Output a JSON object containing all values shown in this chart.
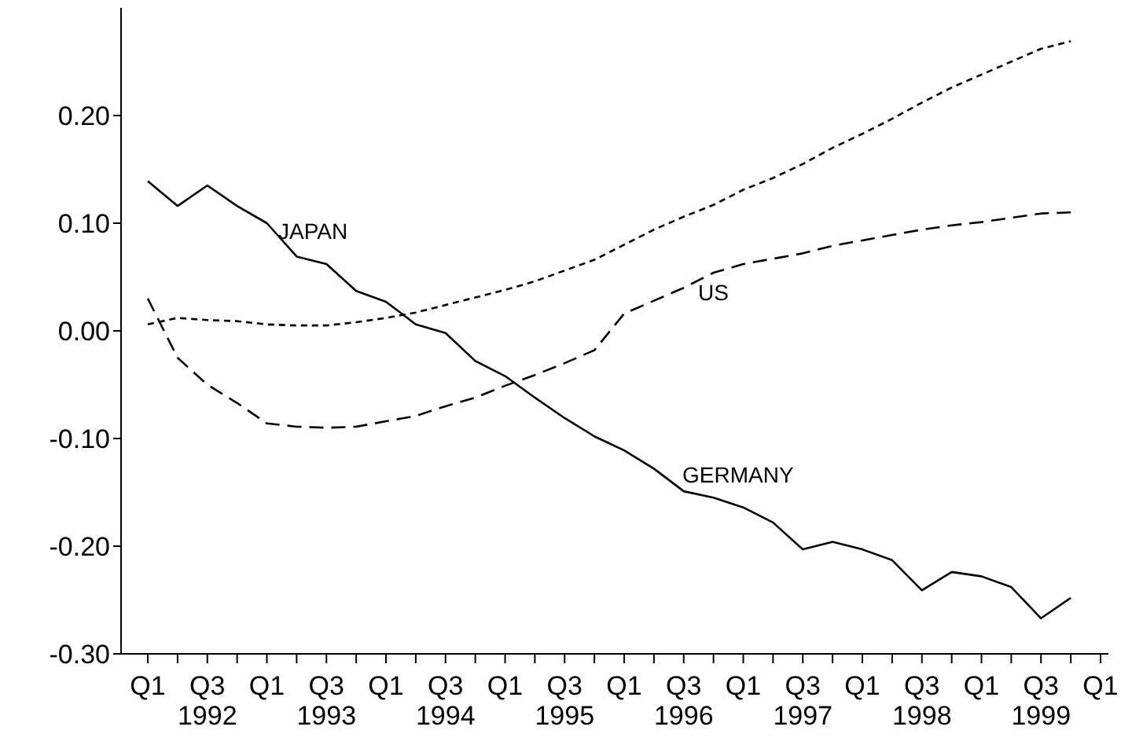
{
  "chart_data": {
    "type": "line",
    "categories": [
      "Q1",
      null,
      "Q3\n1992",
      null,
      "Q1",
      null,
      "Q3\n1993",
      null,
      "Q1",
      null,
      "Q3\n1994",
      null,
      "Q1",
      null,
      "Q3\n1995",
      null,
      "Q1",
      null,
      "Q3\n1996",
      null,
      "Q1",
      null,
      "Q3\n1997",
      null,
      "Q1",
      null,
      "Q3\n1998",
      null,
      "Q1",
      null,
      "Q3\n1999",
      null,
      "Q1"
    ],
    "series": [
      {
        "color": "#000000",
        "line_style": "solid",
        "values": [
          0.139,
          0.116,
          0.135,
          0.116,
          0.1,
          0.069,
          0.062,
          0.037,
          0.027,
          0.006,
          -0.002,
          -0.028,
          -0.042,
          -0.062,
          -0.081,
          -0.098,
          -0.111,
          -0.128,
          -0.149,
          -0.155,
          -0.164,
          -0.178,
          -0.203,
          -0.196,
          -0.203,
          -0.213,
          -0.241,
          -0.224,
          -0.228,
          -0.238,
          -0.267,
          -0.248,
          null
        ]
      },
      {
        "color": "#000000",
        "line_style": "dashed",
        "values": [
          0.03,
          -0.025,
          -0.05,
          -0.067,
          -0.086,
          -0.089,
          -0.09,
          -0.089,
          -0.084,
          -0.079,
          -0.07,
          -0.062,
          -0.051,
          -0.041,
          -0.03,
          -0.018,
          0.016,
          0.028,
          0.04,
          0.054,
          0.062,
          0.067,
          0.072,
          0.079,
          0.084,
          0.089,
          0.094,
          0.098,
          0.101,
          0.105,
          0.109,
          0.11,
          null
        ]
      },
      {
        "color": "#000000",
        "line_style": "dotted",
        "values": [
          0.006,
          0.012,
          0.01,
          0.009,
          0.006,
          0.005,
          0.005,
          0.008,
          0.012,
          0.017,
          0.024,
          0.031,
          0.038,
          0.046,
          0.056,
          0.066,
          0.08,
          0.094,
          0.106,
          0.117,
          0.131,
          0.142,
          0.155,
          0.17,
          0.183,
          0.197,
          0.212,
          0.226,
          0.238,
          0.25,
          0.262,
          0.269,
          null
        ]
      }
    ],
    "ylim": [
      -0.3,
      0.3
    ],
    "yticks": [
      {
        "value": -0.3,
        "label": "-0.30"
      },
      {
        "value": -0.2,
        "label": "-0.20"
      },
      {
        "value": -0.1,
        "label": "-0.10"
      },
      {
        "value": 0,
        "label": "0.00"
      },
      {
        "value": 0.1,
        "label": "0.10"
      },
      {
        "value": 0.2,
        "label": "0.20"
      }
    ],
    "annotations": [
      "JAPAN",
      "US",
      "GERMANY"
    ],
    "grid": false,
    "legend": false,
    "marker": "none"
  }
}
